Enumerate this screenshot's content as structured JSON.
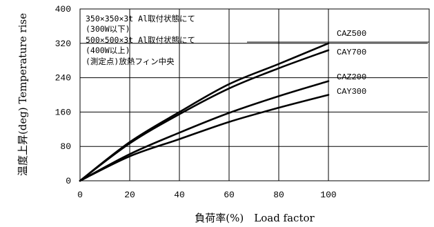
{
  "chart_data": {
    "type": "line",
    "xlabel": "負荷率(%)　Load factor",
    "ylabel": "温度上昇(deg)  Temperature rise",
    "xlim": [
      0,
      140
    ],
    "ylim": [
      0,
      400
    ],
    "xticks": [
      0,
      20,
      40,
      60,
      80,
      100
    ],
    "yticks": [
      0,
      80,
      160,
      240,
      320,
      400
    ],
    "grid": true,
    "annotation": [
      "350×350×3t Al取付状態にて",
      "(300W以下)",
      "500×500×3t Al取付状態にて",
      "(400W以上)",
      "(測定点)放熱フィン中央"
    ],
    "series": [
      {
        "name": "CAZ500",
        "x": [
          0,
          20,
          40,
          60,
          80,
          100
        ],
        "y": [
          0,
          90,
          160,
          225,
          272,
          320
        ]
      },
      {
        "name": "CAY700",
        "x": [
          0,
          20,
          40,
          60,
          80,
          100
        ],
        "y": [
          0,
          87,
          155,
          215,
          262,
          304
        ]
      },
      {
        "name": "CAZ200",
        "x": [
          0,
          20,
          40,
          60,
          80,
          100
        ],
        "y": [
          0,
          62,
          112,
          158,
          197,
          232
        ]
      },
      {
        "name": "CAY300",
        "x": [
          0,
          20,
          40,
          60,
          80,
          100
        ],
        "y": [
          0,
          57,
          97,
          137,
          170,
          200
        ]
      }
    ]
  }
}
